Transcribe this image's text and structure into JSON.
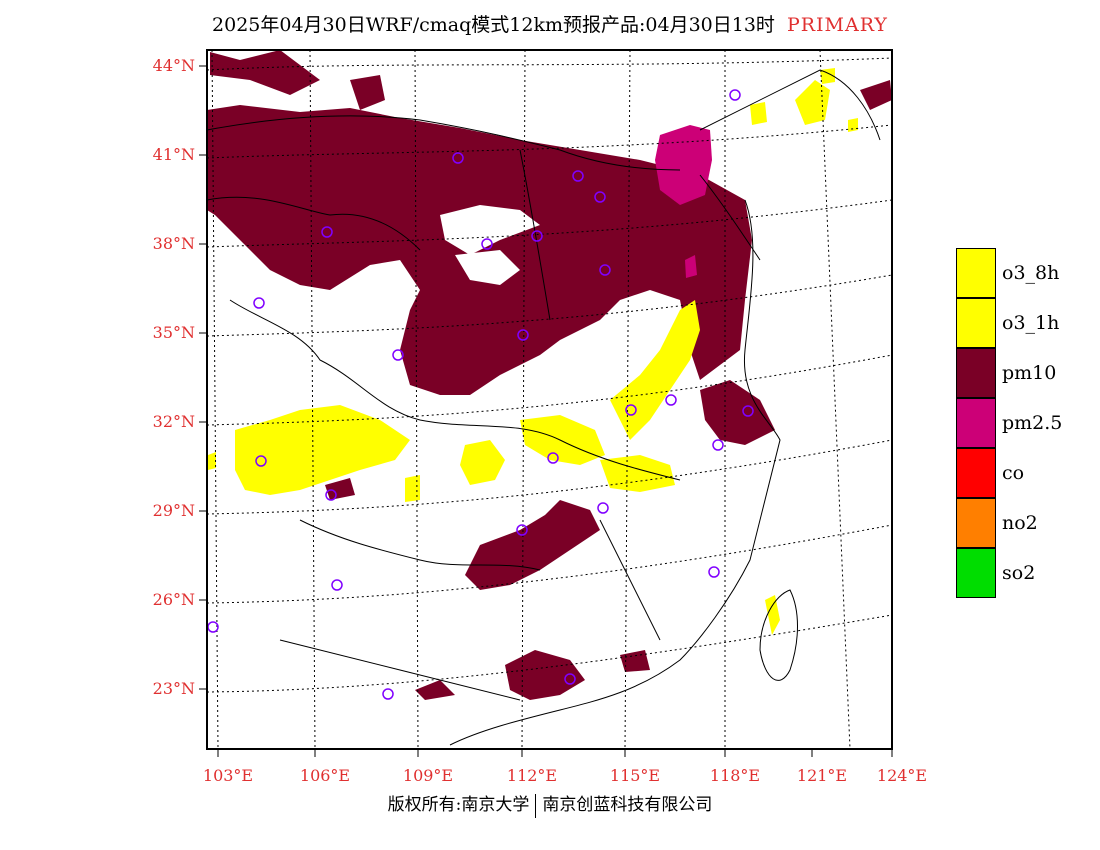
{
  "title": {
    "text": "2025年04月30日WRF/cmaq模式12km预报产品:04月30日13时",
    "tag": "PRIMARY",
    "tag_color": "#e03030"
  },
  "axes": {
    "lat_labels": [
      "44°N",
      "41°N",
      "38°N",
      "35°N",
      "32°N",
      "29°N",
      "26°N",
      "23°N"
    ],
    "lon_labels": [
      "103°E",
      "106°E",
      "109°E",
      "112°E",
      "115°E",
      "118°E",
      "121°E",
      "124°E"
    ],
    "label_color": "#e03030"
  },
  "legend": {
    "items": [
      {
        "label": "o3_8h",
        "color": "#ffff00"
      },
      {
        "label": "o3_1h",
        "color": "#ffff00"
      },
      {
        "label": "pm10",
        "color": "#7a0026"
      },
      {
        "label": "pm2.5",
        "color": "#cc0077"
      },
      {
        "label": "co",
        "color": "#ff0000"
      },
      {
        "label": "no2",
        "color": "#ff7f00"
      },
      {
        "label": "so2",
        "color": "#00dd00"
      }
    ]
  },
  "footer": {
    "left": "版权所有:南京大学",
    "right": "南京创蓝科技有限公司"
  }
}
